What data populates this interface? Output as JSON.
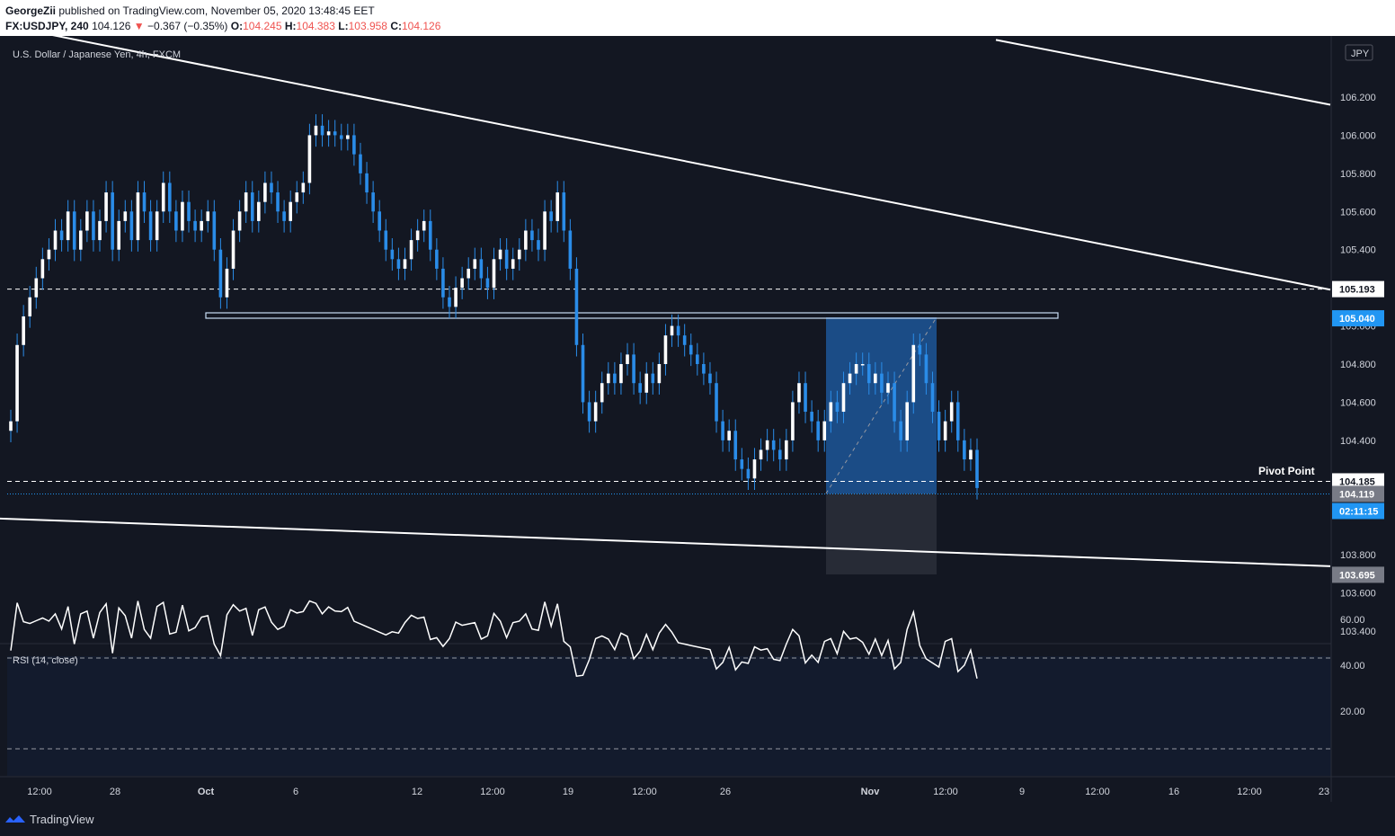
{
  "header": {
    "author": "GeorgeZii",
    "published_text": "published on TradingView.com, November 05, 2020 13:48:45 EET",
    "symbol": "FX:USDJPY, 240",
    "last": "104.126",
    "change": "−0.367 (−0.35%)",
    "open_label": "O:",
    "open": "104.245",
    "high_label": "H:",
    "high": "104.383",
    "low_label": "L:",
    "low": "103.958",
    "close_label": "C:",
    "close": "104.126"
  },
  "chart_title": "U.S. Dollar / Japanese Yen, 4h, FXCM",
  "currency_badge": "JPY",
  "rsi_label": "RSI (14, close)",
  "footer": {
    "brand": "TradingView"
  },
  "colors": {
    "background": "#131722",
    "candle": "#2a8ce8",
    "accent": "#2196f3",
    "line": "#ffffff"
  },
  "chart_data": {
    "type": "candlestick",
    "symbol": "USDJPY",
    "timeframe": "4h",
    "price_ticks": [
      "106.200",
      "106.000",
      "105.800",
      "105.600",
      "105.400",
      "105.000",
      "104.800",
      "104.600",
      "104.400",
      "103.800",
      "103.600",
      "103.400"
    ],
    "ylim": [
      103.3,
      106.45
    ],
    "x_tick_labels": [
      "12:00",
      "28",
      "Oct",
      "6",
      "12",
      "12:00",
      "19",
      "12:00",
      "26",
      "Nov",
      "12:00",
      "9",
      "12:00",
      "16",
      "12:00",
      "23"
    ],
    "price_labels": [
      {
        "value": "105.193",
        "style": "white"
      },
      {
        "value": "105.040",
        "style": "blue"
      },
      {
        "value": "104.185",
        "style": "white"
      },
      {
        "value": "104.119",
        "style": "grey"
      },
      {
        "value": "02:11:15",
        "style": "blue"
      },
      {
        "value": "103.695",
        "style": "grey"
      }
    ],
    "annotations": [
      {
        "text": "Pivot Point",
        "price": 104.185
      }
    ],
    "horizontal_levels": [
      105.193,
      104.185,
      104.119
    ],
    "resistance_zone": [
      105.04,
      105.01
    ],
    "position_tool": {
      "entry": 104.119,
      "target": 105.04,
      "stop": 103.695
    },
    "trendlines": [
      {
        "from": [
          0,
          106.58
        ],
        "to": [
          1480,
          105.19
        ]
      },
      {
        "from": [
          1108,
          106.5
        ],
        "to": [
          1480,
          106.16
        ]
      },
      {
        "from": [
          0,
          103.99
        ],
        "to": [
          1480,
          103.74
        ]
      }
    ],
    "closes": [
      104.5,
      104.9,
      105.05,
      105.15,
      105.25,
      105.35,
      105.4,
      105.5,
      105.45,
      105.6,
      105.4,
      105.5,
      105.6,
      105.45,
      105.55,
      105.7,
      105.4,
      105.55,
      105.6,
      105.45,
      105.7,
      105.6,
      105.45,
      105.6,
      105.75,
      105.6,
      105.5,
      105.65,
      105.55,
      105.5,
      105.55,
      105.6,
      105.4,
      105.15,
      105.3,
      105.5,
      105.6,
      105.7,
      105.55,
      105.65,
      105.75,
      105.7,
      105.6,
      105.55,
      105.65,
      105.7,
      105.75,
      106.0,
      106.05,
      106.0,
      106.02,
      106.0,
      105.98,
      106.0,
      105.9,
      105.8,
      105.7,
      105.6,
      105.5,
      105.4,
      105.35,
      105.3,
      105.35,
      105.45,
      105.5,
      105.55,
      105.4,
      105.3,
      105.15,
      105.1,
      105.2,
      105.25,
      105.3,
      105.35,
      105.25,
      105.2,
      105.35,
      105.4,
      105.3,
      105.35,
      105.4,
      105.5,
      105.45,
      105.4,
      105.6,
      105.55,
      105.7,
      105.5,
      105.3,
      104.9,
      104.6,
      104.5,
      104.6,
      104.7,
      104.75,
      104.7,
      104.8,
      104.85,
      104.7,
      104.65,
      104.75,
      104.7,
      104.8,
      104.95,
      105.0,
      104.95,
      104.9,
      104.85,
      104.8,
      104.75,
      104.7,
      104.5,
      104.4,
      104.45,
      104.3,
      104.25,
      104.2,
      104.3,
      104.35,
      104.4,
      104.35,
      104.3,
      104.4,
      104.6,
      104.7,
      104.55,
      104.5,
      104.4,
      104.5,
      104.6,
      104.55,
      104.7,
      104.75,
      104.8,
      104.8,
      104.7,
      104.75,
      104.65,
      104.7,
      104.5,
      104.4,
      104.6,
      104.9,
      104.85,
      104.7,
      104.55,
      104.4,
      104.5,
      104.6,
      104.4,
      104.3,
      104.35,
      104.15
    ]
  }
}
